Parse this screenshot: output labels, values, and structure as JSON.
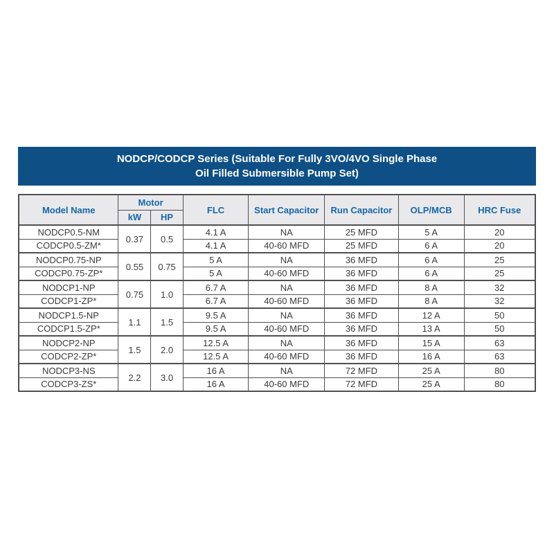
{
  "title": {
    "line1": "NODCP/CODCP Series (Suitable For Fully 3VO/4VO Single Phase",
    "line2": "Oil Filled Submersible Pump Set)"
  },
  "table": {
    "headers": {
      "model": "Model Name",
      "motor": "Motor",
      "kw": "kW",
      "hp": "HP",
      "flc": "FLC",
      "start_cap": "Start Capacitor",
      "run_cap": "Run Capacitor",
      "olp": "OLP/MCB",
      "hrc": "HRC Fuse"
    },
    "groups": [
      {
        "kw": "0.37",
        "hp": "0.5",
        "rows": [
          {
            "model": "NODCP0.5-NM",
            "flc": "4.1 A",
            "start": "NA",
            "run": "25 MFD",
            "olp": "5 A",
            "hrc": "20"
          },
          {
            "model": "CODCP0.5-ZM*",
            "flc": "4.1 A",
            "start": "40-60 MFD",
            "run": "25 MFD",
            "olp": "6 A",
            "hrc": "20"
          }
        ]
      },
      {
        "kw": "0.55",
        "hp": "0.75",
        "rows": [
          {
            "model": "NODCP0.75-NP",
            "flc": "5 A",
            "start": "NA",
            "run": "36 MFD",
            "olp": "6 A",
            "hrc": "25"
          },
          {
            "model": "CODCP0.75-ZP*",
            "flc": "5 A",
            "start": "40-60 MFD",
            "run": "36 MFD",
            "olp": "6 A",
            "hrc": "25"
          }
        ]
      },
      {
        "kw": "0.75",
        "hp": "1.0",
        "rows": [
          {
            "model": "NODCP1-NP",
            "flc": "6.7 A",
            "start": "NA",
            "run": "36 MFD",
            "olp": "8 A",
            "hrc": "32"
          },
          {
            "model": "CODCP1-ZP*",
            "flc": "6.7 A",
            "start": "40-60 MFD",
            "run": "36 MFD",
            "olp": "8 A",
            "hrc": "32"
          }
        ]
      },
      {
        "kw": "1.1",
        "hp": "1.5",
        "rows": [
          {
            "model": "NODCP1.5-NP",
            "flc": "9.5 A",
            "start": "NA",
            "run": "36 MFD",
            "olp": "12 A",
            "hrc": "50"
          },
          {
            "model": "CODCP1.5-ZP*",
            "flc": "9.5 A",
            "start": "40-60 MFD",
            "run": "36 MFD",
            "olp": "13 A",
            "hrc": "50"
          }
        ]
      },
      {
        "kw": "1.5",
        "hp": "2.0",
        "rows": [
          {
            "model": "NODCP2-NP",
            "flc": "12.5 A",
            "start": "NA",
            "run": "36 MFD",
            "olp": "15 A",
            "hrc": "63"
          },
          {
            "model": "CODCP2-ZP*",
            "flc": "12.5 A",
            "start": "40-60 MFD",
            "run": "36 MFD",
            "olp": "16 A",
            "hrc": "63"
          }
        ]
      },
      {
        "kw": "2.2",
        "hp": "3.0",
        "rows": [
          {
            "model": "NODCP3-NS",
            "flc": "16 A",
            "start": "NA",
            "run": "72 MFD",
            "olp": "25 A",
            "hrc": "80"
          },
          {
            "model": "CODCP3-ZS*",
            "flc": "16 A",
            "start": "40-60 MFD",
            "run": "72 MFD",
            "olp": "25 A",
            "hrc": "80"
          }
        ]
      }
    ]
  },
  "colors": {
    "title_bg": "#0e4f86",
    "title_text": "#ffffff",
    "header_bg": "#e9e9eb",
    "header_text": "#1566a7",
    "body_text": "#3a3a3a",
    "border": "#4f4f4f",
    "page_bg": "#ffffff"
  }
}
